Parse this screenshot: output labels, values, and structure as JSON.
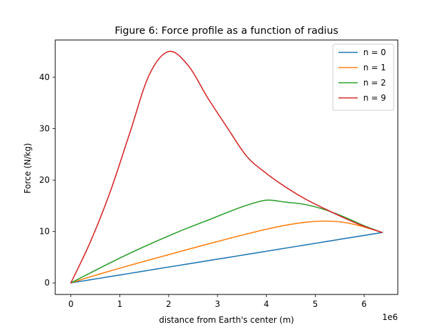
{
  "chart_data": {
    "type": "line",
    "title": "Figure 6: Force profile as a function of radius",
    "xlabel": "distance from Earth's center (m)",
    "ylabel": "Force (N/kg)",
    "x_offset_label": "1e6",
    "xlim": [
      -320000,
      6690000
    ],
    "ylim": [
      -2.25,
      47.25
    ],
    "x_ticks": [
      0,
      1000000,
      2000000,
      3000000,
      4000000,
      5000000,
      6000000
    ],
    "x_tick_labels": [
      "0",
      "1",
      "2",
      "3",
      "4",
      "5",
      "6"
    ],
    "y_ticks": [
      0,
      10,
      20,
      30,
      40
    ],
    "y_tick_labels": [
      "0",
      "10",
      "20",
      "30",
      "40"
    ],
    "grid": false,
    "legend_position": "top-right",
    "x": [
      0,
      400000,
      800000,
      1200000,
      1600000,
      2000000,
      2400000,
      2800000,
      3200000,
      3600000,
      4000000,
      4400000,
      4800000,
      5200000,
      5600000,
      6000000,
      6371000
    ],
    "series": [
      {
        "name": "n = 0",
        "color": "#1f77b4",
        "values": [
          0,
          0.61,
          1.23,
          1.84,
          2.46,
          3.08,
          3.69,
          4.31,
          4.92,
          5.54,
          6.15,
          6.77,
          7.38,
          8.0,
          8.62,
          9.23,
          9.8
        ]
      },
      {
        "name": "n = 1",
        "color": "#ff7f0e",
        "values": [
          0,
          1.19,
          2.31,
          3.4,
          4.45,
          5.49,
          6.53,
          7.55,
          8.55,
          9.52,
          10.43,
          11.22,
          11.79,
          12.02,
          11.75,
          10.89,
          9.8
        ]
      },
      {
        "name": "n = 2",
        "color": "#2ca02c",
        "values": [
          0,
          1.95,
          3.89,
          5.73,
          7.48,
          9.14,
          10.72,
          12.19,
          13.7,
          15.1,
          16.09,
          15.7,
          15.24,
          14.23,
          12.8,
          11.12,
          9.8
        ]
      },
      {
        "name": "n = 9",
        "color": "#d62728",
        "values": [
          0,
          8.0,
          17.6,
          29.0,
          40.4,
          45.0,
          42.3,
          36.0,
          30.2,
          24.6,
          21.3,
          18.6,
          16.3,
          14.4,
          12.6,
          11.0,
          9.8
        ]
      }
    ]
  }
}
